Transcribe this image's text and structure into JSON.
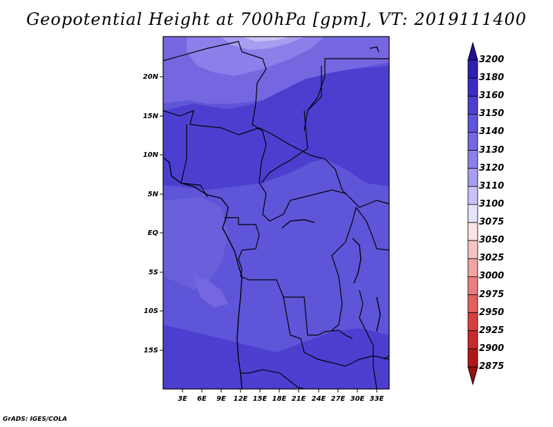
{
  "title": "Geopotential Height at 700hPa [gpm], VT: 2019111400",
  "footer": "GrADS: IGES/COLA",
  "map": {
    "lat_range": [
      -20,
      25
    ],
    "lon_range": [
      0,
      35
    ],
    "lat_ticks": [
      "20N",
      "15N",
      "10N",
      "5N",
      "EQ",
      "5S",
      "10S",
      "15S"
    ],
    "lon_ticks": [
      "3E",
      "6E",
      "9E",
      "12E",
      "15E",
      "18E",
      "21E",
      "24E",
      "27E",
      "30E",
      "33E"
    ]
  },
  "colorbar": {
    "levels": [
      "3200",
      "3180",
      "3160",
      "3150",
      "3140",
      "3130",
      "3120",
      "3110",
      "3100",
      "3075",
      "3050",
      "3025",
      "3000",
      "2975",
      "2950",
      "2925",
      "2900",
      "2875"
    ],
    "colors": [
      "#201496",
      "#2d1fb0",
      "#3a2cc4",
      "#4c3fd0",
      "#5f55d8",
      "#7567e0",
      "#8c7fea",
      "#a89ef0",
      "#c8c2f6",
      "#e6e3fb",
      "#fbe4e4",
      "#f6c4c4",
      "#f0a4a4",
      "#e88080",
      "#e06060",
      "#d84040",
      "#c82a2a",
      "#b01818",
      "#981010"
    ]
  },
  "colors": {
    "base_field": "#5f55d8",
    "higher_field": "#4c3fd0",
    "low_north": "#a89ef0",
    "lowest_north": "#c8c2f6",
    "south_high": "#4c3fd0"
  }
}
